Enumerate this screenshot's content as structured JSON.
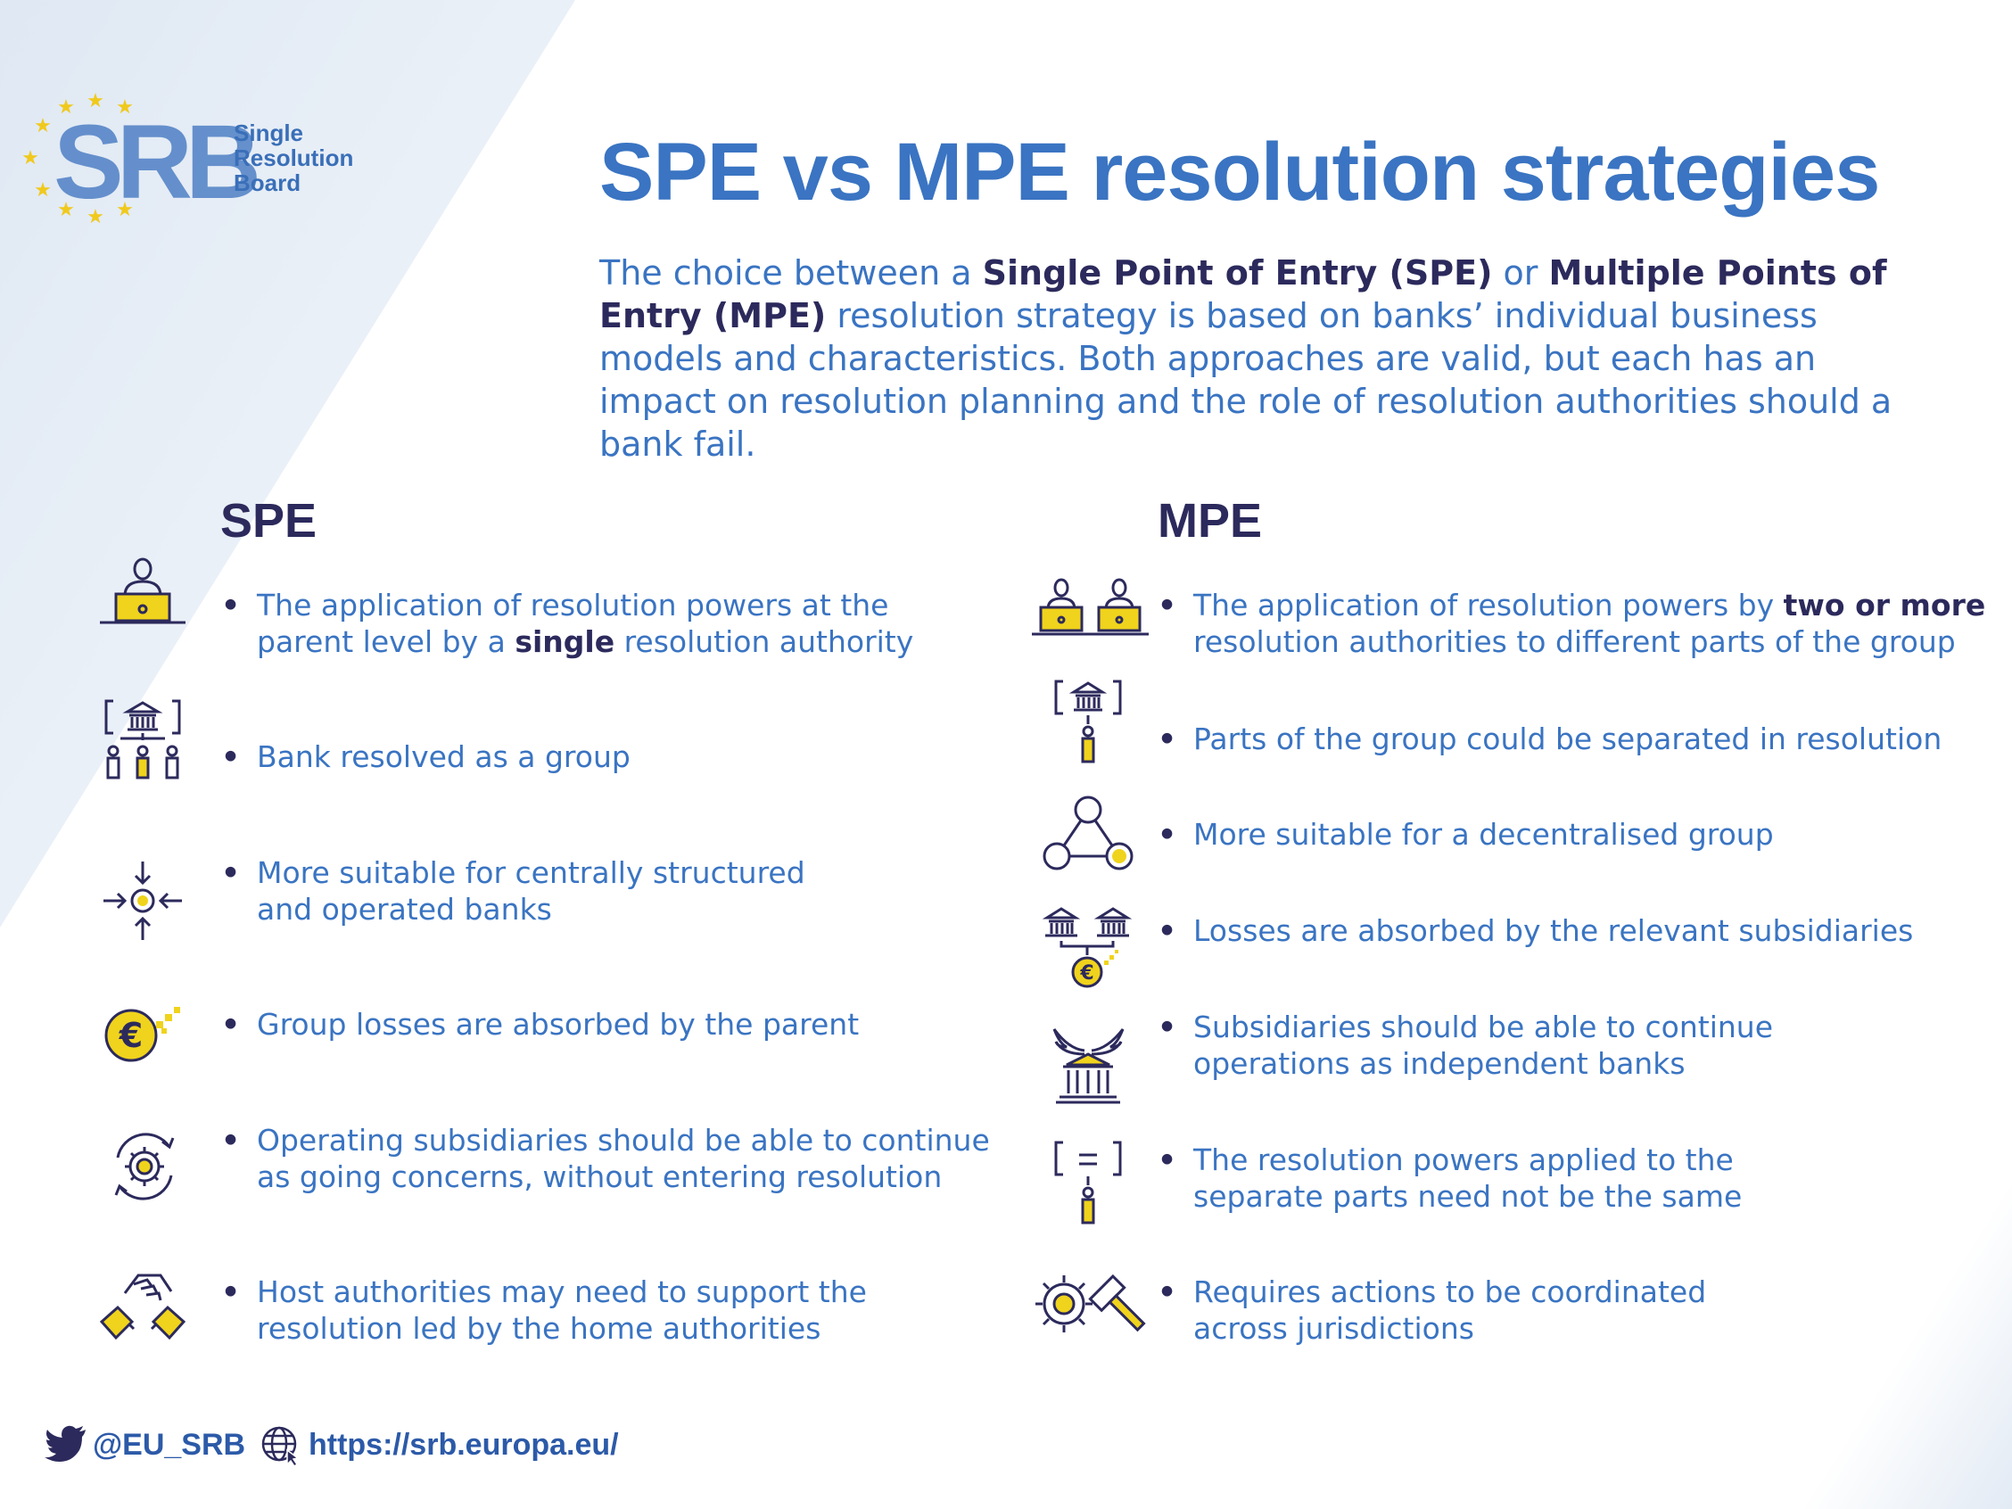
{
  "brand": {
    "logo_letters": "SRB",
    "name_lines": [
      "Single",
      "Resolution",
      "Board"
    ]
  },
  "title": "SPE vs MPE resolution strategies",
  "intro": {
    "t1": "The choice between a ",
    "b1": "Single Point of Entry (SPE)",
    "t2": " or ",
    "b2": "Multiple Points of Entry (MPE)",
    "t3": " resolution strategy is based on banks’ individual business models and characteristics. Both approaches are valid, but each has an impact on resolution planning and the role of resolution authorities should a bank fail."
  },
  "spe": {
    "heading": "SPE",
    "items": [
      {
        "icon": "person-at-laptop-icon",
        "l1": "The application of resolution powers at the",
        "l2a": "parent level by a ",
        "l2b": "single",
        "l2c": " resolution authority"
      },
      {
        "icon": "bank-group-icon",
        "l1": "Bank resolved as a group"
      },
      {
        "icon": "converging-arrows-icon",
        "l1": "More suitable for centrally structured",
        "l2": "and operated banks"
      },
      {
        "icon": "euro-coin-icon",
        "l1": "Group losses are absorbed by the parent"
      },
      {
        "icon": "gear-cycle-icon",
        "l1": "Operating subsidiaries should be able to continue",
        "l2": "as going concerns, without entering resolution"
      },
      {
        "icon": "handshake-icon",
        "l1": "Host authorities may need to support the",
        "l2": "resolution led by the home authorities"
      }
    ]
  },
  "mpe": {
    "heading": "MPE",
    "items": [
      {
        "icon": "two-people-at-laptops-icon",
        "l1a": "The application of resolution powers by ",
        "l1b": "two or more",
        "l2": "resolution authorities to different parts of the group"
      },
      {
        "icon": "bank-presenter-icon",
        "l1": "Parts of the group could be separated in resolution"
      },
      {
        "icon": "network-triangle-icon",
        "l1": "More suitable for a decentralised group"
      },
      {
        "icon": "banks-euro-icon",
        "l1": "Losses are absorbed by the relevant subsidiaries"
      },
      {
        "icon": "winged-bank-icon",
        "l1": "Subsidiaries should be able to continue",
        "l2": "operations as independent banks"
      },
      {
        "icon": "equals-board-icon",
        "l1": "The resolution powers applied to the",
        "l2": "separate parts need not be the same"
      },
      {
        "icon": "gear-gavel-icon",
        "l1": "Requires actions to be coordinated",
        "l2": "across jurisdictions"
      }
    ]
  },
  "bullet": "•",
  "footer": {
    "twitter": "@EU_SRB",
    "website": "https://srb.europa.eu/"
  },
  "colors": {
    "primary_blue": "#3a74c2",
    "navy": "#2c2a5c",
    "yellow": "#f0d31c",
    "light_blue_bg": "#e4ecf5"
  }
}
